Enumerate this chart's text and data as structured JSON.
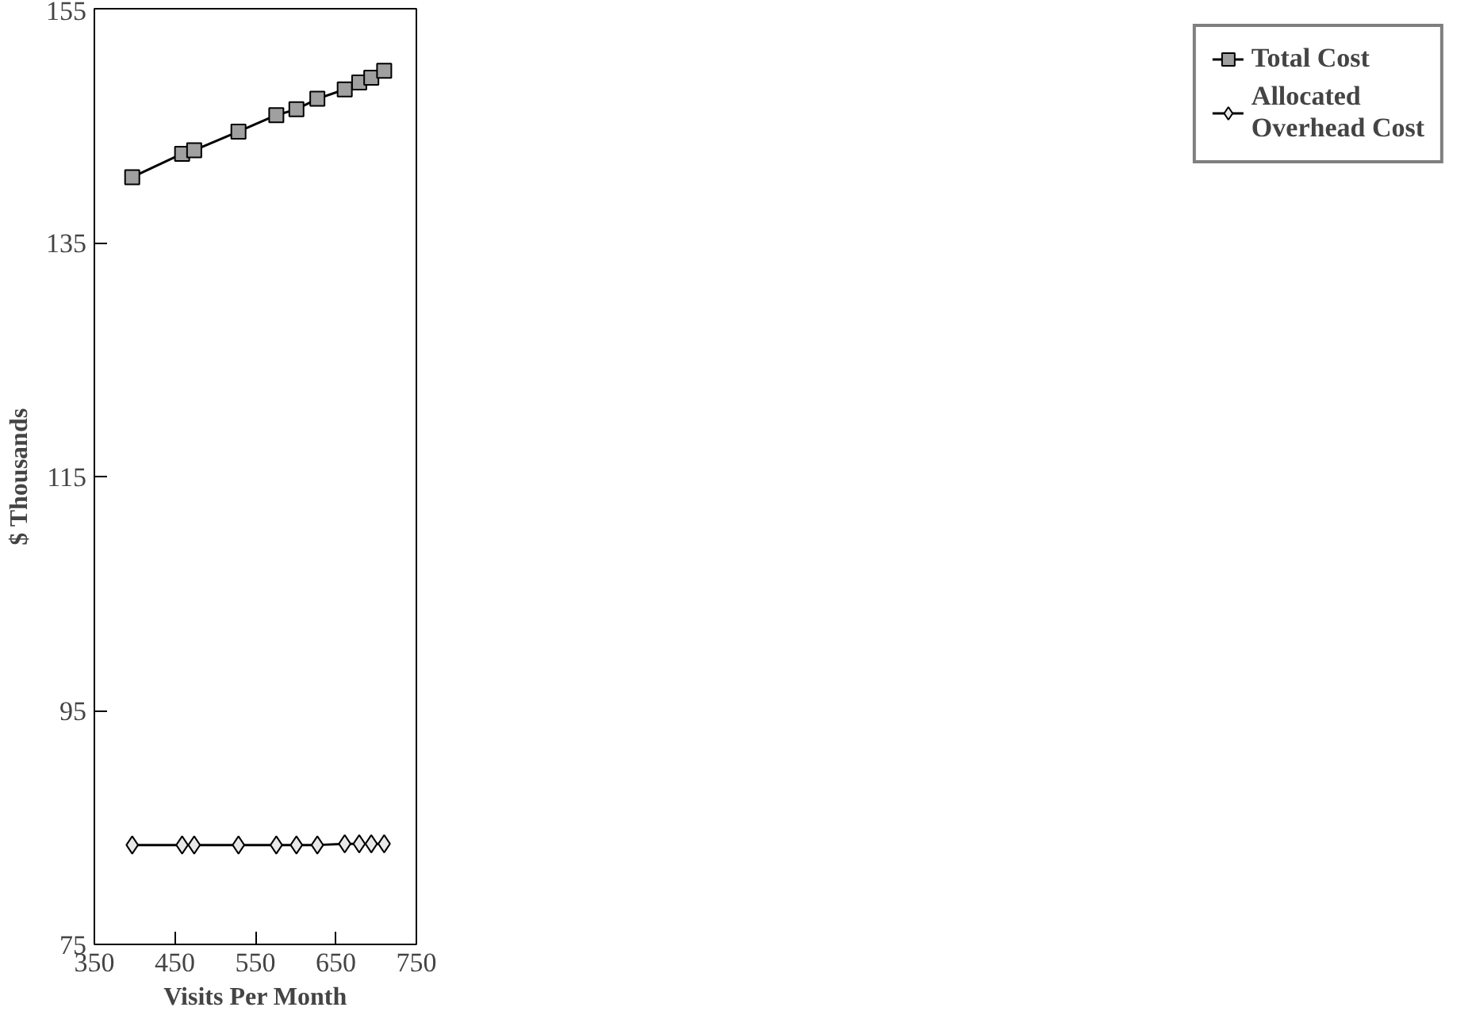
{
  "chart_data": {
    "type": "line",
    "xlabel": "Visits Per Month",
    "ylabel": "$ Thousands",
    "x": [
      397,
      459,
      474,
      529,
      576,
      601,
      627,
      661,
      679,
      694,
      710
    ],
    "series": [
      {
        "name": "Total Cost",
        "color": "#000000",
        "marker": "square",
        "values": [
          140.6,
          142.6,
          142.9,
          144.5,
          145.9,
          146.4,
          147.3,
          148.1,
          148.7,
          149.1,
          149.7
        ]
      },
      {
        "name": "Allocated\nOverhead Cost",
        "color": "#000000",
        "marker": "diamond",
        "values": [
          83.5,
          83.5,
          83.5,
          83.5,
          83.5,
          83.5,
          83.5,
          83.6,
          83.6,
          83.6,
          83.6
        ]
      }
    ],
    "xlim": [
      350,
      750
    ],
    "xticks": [
      350,
      450,
      550,
      650,
      750
    ],
    "ylim": [
      75,
      155
    ],
    "yticks": [
      75,
      95,
      115,
      135,
      155
    ],
    "grid": false,
    "legend": "right",
    "line_style": "solid"
  }
}
